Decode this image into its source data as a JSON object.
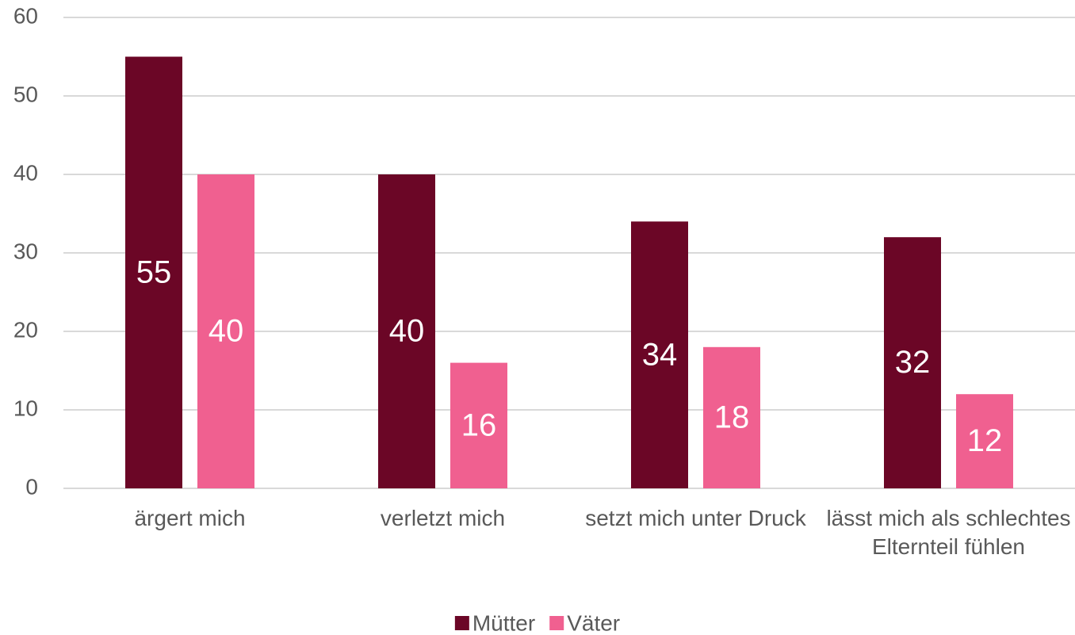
{
  "chart_data": {
    "type": "bar",
    "categories": [
      "ärgert mich",
      "verletzt mich",
      "setzt mich unter Druck",
      "lässt mich als schlechtes Elternteil fühlen"
    ],
    "series": [
      {
        "name": "Mütter",
        "color": "#6b0626",
        "values": [
          55,
          40,
          34,
          32
        ]
      },
      {
        "name": "Väter",
        "color": "#f06090",
        "values": [
          40,
          16,
          18,
          12
        ]
      }
    ],
    "ylim": [
      0,
      60
    ],
    "yticks": [
      0,
      10,
      20,
      30,
      40,
      50,
      60
    ],
    "grid": true,
    "legend": "bottom"
  }
}
